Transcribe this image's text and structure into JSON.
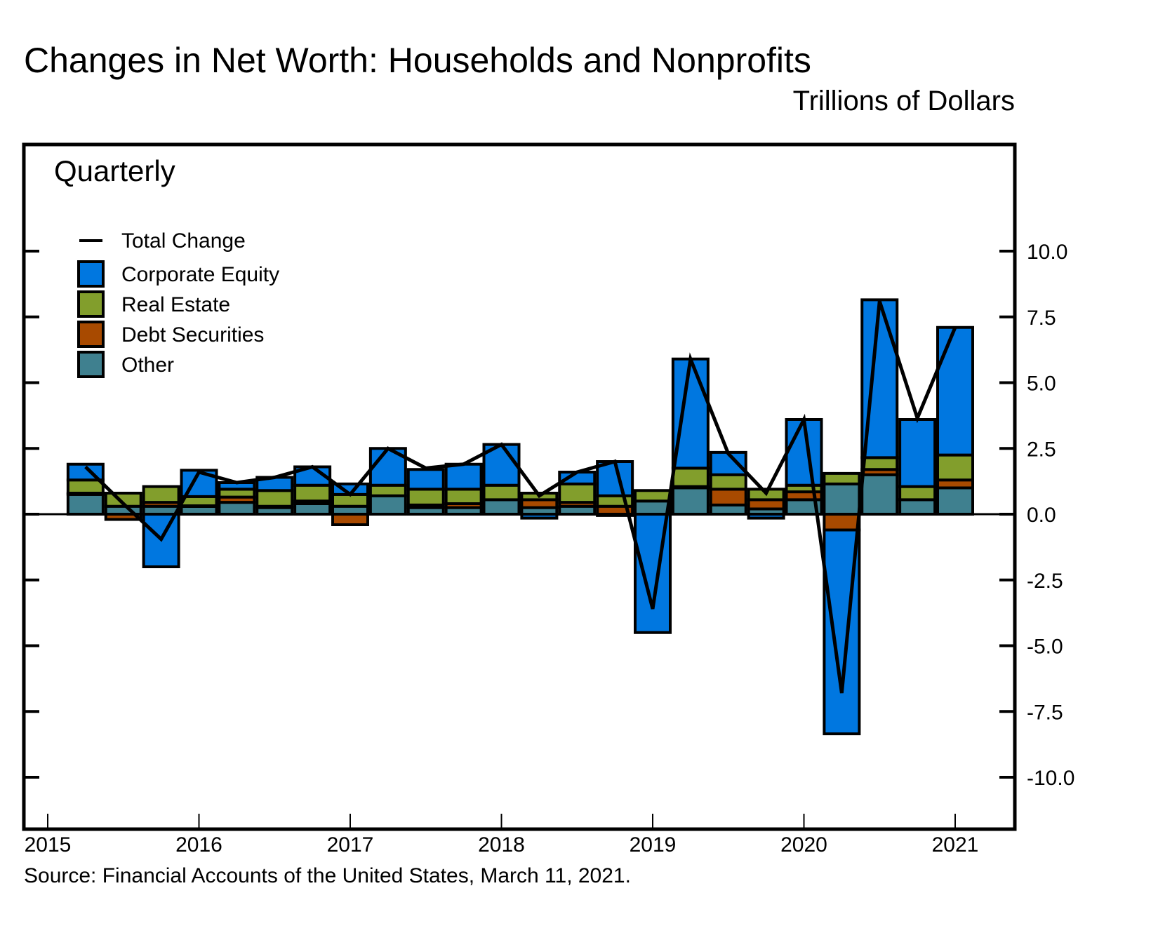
{
  "chart_data": {
    "type": "bar",
    "stacked": true,
    "title": "Changes in Net Worth: Households and Nonprofits",
    "units_label": "Trillions of Dollars",
    "panel_label": "Quarterly",
    "source": "Source: Financial Accounts of the United States, March 11, 2021.",
    "xlabel": "",
    "ylabel": "Trillions of Dollars",
    "ylim": [
      -12.5,
      12.5
    ],
    "y_ticks": [
      10.0,
      7.5,
      5.0,
      2.5,
      0.0,
      -2.5,
      -5.0,
      -7.5,
      -10.0
    ],
    "y_tick_labels": [
      "10.0",
      "7.5",
      "5.0",
      "2.5",
      "0.0",
      "-2.5",
      "-5.0",
      "-7.5",
      "-10.0"
    ],
    "x_tick_labels": [
      "2015",
      "2016",
      "2017",
      "2018",
      "2019",
      "2020",
      "2021"
    ],
    "xlim": [
      2015.0,
      2021.35
    ],
    "grid": false,
    "legend_position": "top-left",
    "categories": [
      "2015Q1",
      "2015Q2",
      "2015Q3",
      "2015Q4",
      "2016Q1",
      "2016Q2",
      "2016Q3",
      "2016Q4",
      "2017Q1",
      "2017Q2",
      "2017Q3",
      "2017Q4",
      "2018Q1",
      "2018Q2",
      "2018Q3",
      "2018Q4",
      "2019Q1",
      "2019Q2",
      "2019Q3",
      "2019Q4",
      "2020Q1",
      "2020Q2",
      "2020Q3",
      "2020Q4"
    ],
    "series": [
      {
        "name": "Other",
        "color": "#3F808F",
        "values": [
          0.75,
          0.3,
          0.3,
          0.3,
          0.45,
          0.25,
          0.4,
          0.3,
          0.7,
          0.25,
          0.25,
          0.55,
          0.25,
          0.3,
          -0.05,
          0.5,
          1.0,
          0.35,
          0.2,
          0.55,
          1.15,
          1.5,
          0.55,
          1.0
        ]
      },
      {
        "name": "Debt Securities",
        "color": "#A84A00",
        "values": [
          0.05,
          -0.2,
          0.15,
          0.02,
          0.2,
          0.05,
          0.1,
          -0.4,
          0.0,
          0.1,
          0.15,
          0.0,
          0.3,
          0.15,
          0.3,
          0.0,
          0.05,
          0.6,
          0.35,
          0.3,
          -0.6,
          0.2,
          0.0,
          0.3
        ]
      },
      {
        "name": "Real Estate",
        "color": "#829E2C",
        "values": [
          0.5,
          0.5,
          0.6,
          0.35,
          0.3,
          0.6,
          0.6,
          0.45,
          0.4,
          0.6,
          0.55,
          0.55,
          0.25,
          0.7,
          0.4,
          0.4,
          0.7,
          0.55,
          0.4,
          0.25,
          0.4,
          0.45,
          0.5,
          0.95
        ]
      },
      {
        "name": "Corporate Equity",
        "color": "#0077E0",
        "values": [
          0.6,
          0.0,
          -2.0,
          1.0,
          0.25,
          0.5,
          0.7,
          0.4,
          1.4,
          0.75,
          0.95,
          1.55,
          -0.15,
          0.45,
          1.3,
          -4.5,
          4.15,
          0.85,
          -0.15,
          2.5,
          -7.75,
          6.0,
          2.55,
          4.85
        ]
      }
    ],
    "line_series": {
      "name": "Total Change",
      "color": "#000000",
      "values": [
        1.8,
        0.4,
        -0.95,
        1.6,
        1.2,
        1.4,
        1.8,
        0.75,
        2.5,
        1.75,
        1.9,
        2.65,
        0.7,
        1.6,
        2.0,
        -3.6,
        5.9,
        2.3,
        0.8,
        3.6,
        -6.8,
        8.1,
        3.65,
        7.1
      ]
    }
  }
}
